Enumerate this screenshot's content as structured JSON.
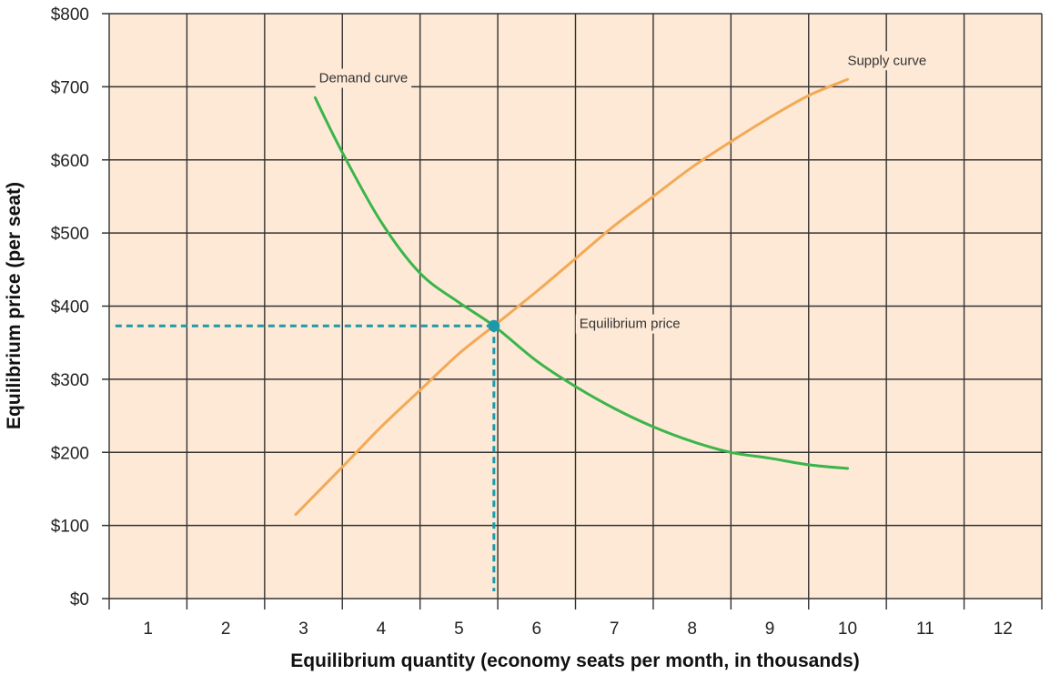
{
  "chart_data": {
    "type": "line",
    "title": "",
    "xlabel": "Equilibrium quantity (economy seats per month, in thousands)",
    "ylabel": "Equilibrium price (per seat)",
    "xlim": [
      0.5,
      12.5
    ],
    "ylim": [
      0,
      800
    ],
    "x_ticks": [
      1,
      2,
      3,
      4,
      5,
      6,
      7,
      8,
      9,
      10,
      11,
      12
    ],
    "x_tick_labels": [
      "1",
      "2",
      "3",
      "4",
      "5",
      "6",
      "7",
      "8",
      "9",
      "10",
      "11",
      "12"
    ],
    "y_ticks": [
      0,
      100,
      200,
      300,
      400,
      500,
      600,
      700,
      800
    ],
    "y_tick_labels": [
      "$0",
      "$100",
      "$200",
      "$300",
      "$400",
      "$500",
      "$600",
      "$700",
      "$800"
    ],
    "grid": true,
    "background_color": "#fde9d6",
    "series": [
      {
        "name": "Demand curve",
        "color": "#3ab54a",
        "x": [
          3.15,
          3.5,
          4.0,
          4.5,
          5.0,
          5.45,
          6.0,
          6.5,
          7.0,
          7.5,
          8.0,
          8.5,
          9.0,
          9.5,
          10.0
        ],
        "y": [
          685,
          610,
          515,
          445,
          405,
          373,
          325,
          290,
          260,
          235,
          215,
          200,
          192,
          183,
          178
        ]
      },
      {
        "name": "Supply curve",
        "color": "#f4a955",
        "x": [
          2.9,
          3.5,
          4.0,
          4.5,
          5.0,
          5.45,
          6.0,
          6.5,
          7.0,
          7.5,
          8.0,
          8.5,
          9.0,
          9.5,
          10.0
        ],
        "y": [
          115,
          180,
          235,
          285,
          335,
          373,
          420,
          465,
          510,
          550,
          590,
          625,
          658,
          688,
          710
        ]
      }
    ],
    "equilibrium": {
      "x": 5.45,
      "y": 373,
      "color": "#1d9aaa"
    },
    "annotations": [
      {
        "text": "Demand curve",
        "x": 3.2,
        "y": 706
      },
      {
        "text": "Supply curve",
        "x": 10.0,
        "y": 730
      },
      {
        "text": "Equilibrium price",
        "x": 6.55,
        "y": 370
      }
    ]
  }
}
